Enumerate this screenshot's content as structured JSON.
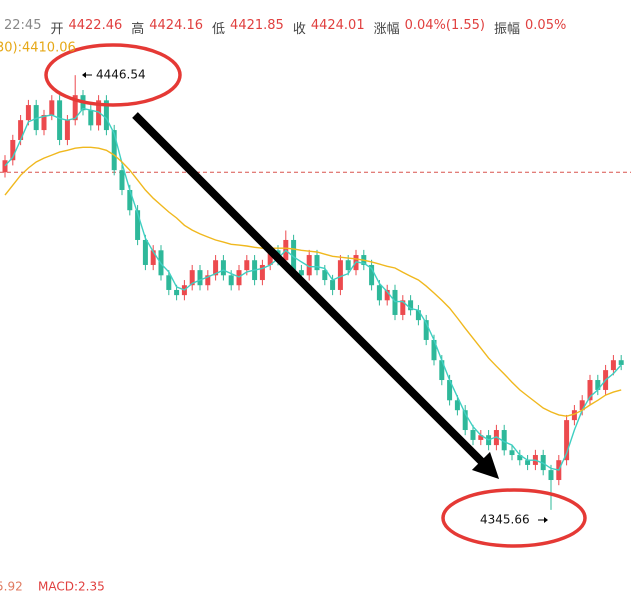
{
  "chart_data": {
    "type": "candlestick",
    "info_bar": {
      "time": "22:45",
      "items": [
        {
          "label": "开",
          "value": 4422.46
        },
        {
          "label": "高",
          "value": 4424.16
        },
        {
          "label": "低",
          "value": 4421.85
        },
        {
          "label": "收",
          "value": 4424.01
        },
        {
          "label": "涨幅",
          "value": "0.04%(1.55)"
        },
        {
          "label": "振幅",
          "value": "0.05%"
        }
      ]
    },
    "ma_label": "30):4410.06",
    "macd_labels": [
      5.92,
      "MACD:2.35"
    ],
    "up_color": "#ec4a4e",
    "down_color": "#2eb89a",
    "ylim": [
      4329.4,
      4454.7
    ],
    "open": [
      4424.0,
      4426.8,
      4431.5,
      4436.1,
      4439.6,
      4433.8,
      4437.3,
      4440.7,
      4431.5,
      4436.1,
      4441.9,
      4438.4,
      4434.9,
      4440.7,
      4433.8,
      4424.5,
      4419.9,
      4415.2,
      4408.3,
      4402.5,
      4405.9,
      4400.1,
      4396.7,
      4395.5,
      4397.8,
      4401.3,
      4397.8,
      4400.1,
      4403.6,
      4400.1,
      4397.8,
      4401.3,
      4403.6,
      4399.0,
      4402.5,
      4405.9,
      4403.6,
      4408.3,
      4401.3,
      4400.1,
      4404.8,
      4401.3,
      4399.0,
      4396.7,
      4403.6,
      4401.3,
      4404.8,
      4402.5,
      4397.8,
      4394.3,
      4396.7,
      4390.9,
      4394.3,
      4392.0,
      4389.7,
      4385.1,
      4380.4,
      4375.8,
      4371.1,
      4368.8,
      4364.2,
      4361.9,
      4363.0,
      4360.7,
      4364.2,
      4359.5,
      4358.4,
      4357.2,
      4356.1,
      4358.4,
      4354.9,
      4352.6,
      4357.2,
      4366.5,
      4368.8,
      4371.1,
      4375.8,
      4373.5,
      4378.1,
      4380.4
    ],
    "high": [
      4428.0,
      4432.7,
      4437.3,
      4440.8,
      4440.8,
      4438.5,
      4441.9,
      4441.9,
      4437.3,
      4446.54,
      4443.1,
      4439.6,
      4441.9,
      4441.9,
      4435.0,
      4425.7,
      4421.1,
      4416.4,
      4409.5,
      4407.1,
      4407.1,
      4401.3,
      4397.9,
      4399.0,
      4402.5,
      4402.5,
      4401.3,
      4404.8,
      4404.8,
      4401.3,
      4402.5,
      4404.8,
      4404.8,
      4403.7,
      4407.1,
      4407.1,
      4410.5,
      4409.5,
      4402.5,
      4406.0,
      4406.0,
      4402.5,
      4400.2,
      4404.8,
      4404.8,
      4406.0,
      4406.0,
      4403.7,
      4399.0,
      4397.9,
      4397.9,
      4395.5,
      4395.5,
      4393.2,
      4390.9,
      4386.3,
      4381.6,
      4377.0,
      4372.3,
      4370.0,
      4365.4,
      4364.2,
      4364.2,
      4365.4,
      4365.4,
      4360.7,
      4359.6,
      4358.4,
      4359.6,
      4359.6,
      4356.1,
      4358.4,
      4367.7,
      4370.0,
      4372.3,
      4377.0,
      4377.0,
      4379.3,
      4381.6,
      4381.6
    ],
    "low": [
      4422.8,
      4425.6,
      4430.3,
      4434.9,
      4432.6,
      4432.6,
      4436.1,
      4430.3,
      4430.3,
      4434.9,
      4437.2,
      4433.7,
      4433.7,
      4432.6,
      4423.3,
      4418.7,
      4414.0,
      4407.1,
      4401.3,
      4401.3,
      4398.9,
      4395.5,
      4394.3,
      4394.3,
      4396.6,
      4396.6,
      4396.6,
      4398.9,
      4398.9,
      4396.6,
      4396.6,
      4400.1,
      4397.8,
      4397.8,
      4401.3,
      4402.4,
      4402.4,
      4400.1,
      4398.9,
      4398.9,
      4400.1,
      4397.8,
      4395.5,
      4395.5,
      4400.1,
      4400.1,
      4401.3,
      4396.6,
      4393.1,
      4393.1,
      4389.7,
      4389.7,
      4390.8,
      4388.5,
      4383.9,
      4379.2,
      4374.6,
      4369.9,
      4367.6,
      4363.0,
      4360.7,
      4360.7,
      4359.5,
      4359.5,
      4358.3,
      4357.2,
      4356.0,
      4354.9,
      4354.9,
      4353.7,
      4345.66,
      4351.4,
      4356.0,
      4365.3,
      4367.6,
      4369.9,
      4372.3,
      4372.3,
      4376.9,
      4378.1
    ],
    "close": [
      4426.8,
      4431.5,
      4436.1,
      4439.6,
      4433.8,
      4437.3,
      4440.7,
      4431.5,
      4436.1,
      4441.9,
      4438.4,
      4434.9,
      4440.7,
      4433.8,
      4424.5,
      4419.9,
      4415.2,
      4408.3,
      4402.5,
      4405.9,
      4400.1,
      4396.7,
      4395.5,
      4397.8,
      4401.3,
      4397.8,
      4400.1,
      4403.6,
      4400.1,
      4397.8,
      4401.3,
      4403.6,
      4399.0,
      4402.5,
      4405.9,
      4403.6,
      4408.3,
      4401.3,
      4400.1,
      4404.8,
      4401.3,
      4399.0,
      4396.7,
      4403.6,
      4401.3,
      4404.8,
      4402.5,
      4397.8,
      4394.3,
      4396.7,
      4390.9,
      4394.3,
      4392.0,
      4389.7,
      4385.1,
      4380.4,
      4375.8,
      4371.1,
      4368.8,
      4364.2,
      4361.9,
      4363.0,
      4360.7,
      4364.2,
      4359.5,
      4358.4,
      4357.2,
      4356.1,
      4358.4,
      4354.9,
      4352.6,
      4357.2,
      4366.5,
      4368.8,
      4371.1,
      4375.8,
      4373.5,
      4378.1,
      4380.4,
      4379.3
    ],
    "series": [
      {
        "color": "#3fcfc2",
        "values": [
          4425.5,
          4427.5,
          4431.5,
          4435.7,
          4436.5,
          4437.0,
          4437.3,
          4436.5,
          4436.1,
          4436.5,
          4438.8,
          4438.4,
          4438.0,
          4436.5,
          4433.0,
          4426.1,
          4419.9,
          4414.5,
          4408.7,
          4405.6,
          4402.8,
          4400.9,
          4397.4,
          4396.7,
          4398.2,
          4399.0,
          4399.7,
          4400.5,
          4401.3,
          4400.5,
          4399.7,
          4400.9,
          4401.3,
          4401.7,
          4402.5,
          4404.0,
          4405.9,
          4404.4,
          4403.2,
          4402.1,
          4402.1,
          4401.7,
          4399.0,
          4399.8,
          4400.5,
          4403.2,
          4402.9,
          4401.7,
          4398.2,
          4396.3,
          4394.0,
          4394.0,
          4392.4,
          4392.0,
          4389.0,
          4385.1,
          4380.4,
          4375.8,
          4371.9,
          4368.0,
          4365.0,
          4363.0,
          4361.9,
          4362.6,
          4361.5,
          4360.7,
          4358.4,
          4357.2,
          4357.2,
          4356.5,
          4355.3,
          4354.9,
          4358.8,
          4364.2,
          4368.8,
          4371.9,
          4373.5,
          4375.8,
          4377.3,
          4379.3
        ]
      },
      {
        "color": "#f0b81e",
        "values": [
          4418.7,
          4421.0,
          4423.3,
          4425.0,
          4426.4,
          4427.3,
          4428.0,
          4428.7,
          4429.1,
          4429.6,
          4429.8,
          4429.8,
          4429.6,
          4429.1,
          4428.0,
          4426.4,
          4424.5,
          4422.2,
          4419.9,
          4418.0,
          4416.4,
          4414.8,
          4413.4,
          4411.7,
          4410.6,
          4409.7,
          4409.0,
          4408.3,
          4407.8,
          4407.3,
          4407.1,
          4406.9,
          4406.6,
          4406.4,
          4406.4,
          4406.4,
          4406.4,
          4406.2,
          4405.9,
          4405.7,
          4405.5,
          4405.0,
          4404.5,
          4404.3,
          4404.1,
          4403.9,
          4403.6,
          4403.2,
          4402.7,
          4402.2,
          4401.8,
          4400.8,
          4399.9,
          4399.0,
          4397.6,
          4396.0,
          4394.3,
          4392.5,
          4390.2,
          4387.8,
          4385.5,
          4383.2,
          4380.9,
          4379.0,
          4377.2,
          4375.3,
          4373.5,
          4372.1,
          4370.7,
          4369.3,
          4368.4,
          4367.7,
          4367.4,
          4367.9,
          4368.8,
          4370.0,
          4371.1,
          4372.3,
          4373.0,
          4373.5
        ]
      }
    ]
  }
}
